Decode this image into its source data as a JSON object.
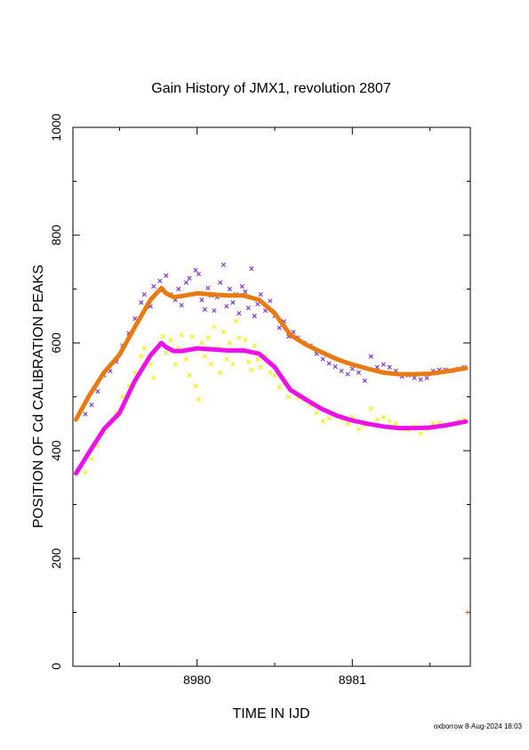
{
  "chart_data": {
    "type": "scatter",
    "title": "Gain History of JMX1, revolution 2807",
    "xlabel": "TIME IN IJD",
    "ylabel": "POSITION OF Cd CALIBRATION PEAKS",
    "xlim": [
      8979.2,
      8981.76
    ],
    "ylim": [
      0,
      1000
    ],
    "x_ticks": [
      8980,
      8981
    ],
    "x_tick_labels": [
      "8980",
      "8981"
    ],
    "y_ticks": [
      0,
      200,
      400,
      600,
      800,
      1000
    ],
    "y_tick_labels": [
      "0",
      "200",
      "400",
      "600",
      "800",
      "1000"
    ],
    "grid": false,
    "legend": "none",
    "series": [
      {
        "color": "#7b2fd6",
        "marker": "x",
        "points": [
          [
            8979.28,
            468
          ],
          [
            8979.32,
            485
          ],
          [
            8979.36,
            510
          ],
          [
            8979.4,
            540
          ],
          [
            8979.44,
            548
          ],
          [
            8979.48,
            565
          ],
          [
            8979.52,
            595
          ],
          [
            8979.56,
            618
          ],
          [
            8979.6,
            645
          ],
          [
            8979.64,
            675
          ],
          [
            8979.66,
            690
          ],
          [
            8979.7,
            668
          ],
          [
            8979.72,
            705
          ],
          [
            8979.76,
            715
          ],
          [
            8979.78,
            698
          ],
          [
            8979.8,
            725
          ],
          [
            8979.83,
            690
          ],
          [
            8979.86,
            680
          ],
          [
            8979.88,
            700
          ],
          [
            8979.9,
            670
          ],
          [
            8979.93,
            712
          ],
          [
            8979.95,
            720
          ],
          [
            8979.97,
            690
          ],
          [
            8979.99,
            735
          ],
          [
            8980.01,
            728
          ],
          [
            8980.03,
            680
          ],
          [
            8980.05,
            662
          ],
          [
            8980.07,
            702
          ],
          [
            8980.09,
            688
          ],
          [
            8980.11,
            660
          ],
          [
            8980.13,
            685
          ],
          [
            8980.15,
            712
          ],
          [
            8980.17,
            745
          ],
          [
            8980.19,
            668
          ],
          [
            8980.21,
            700
          ],
          [
            8980.23,
            675
          ],
          [
            8980.25,
            690
          ],
          [
            8980.27,
            655
          ],
          [
            8980.29,
            705
          ],
          [
            8980.31,
            695
          ],
          [
            8980.33,
            665
          ],
          [
            8980.35,
            738
          ],
          [
            8980.37,
            650
          ],
          [
            8980.39,
            672
          ],
          [
            8980.41,
            690
          ],
          [
            8980.44,
            660
          ],
          [
            8980.47,
            678
          ],
          [
            8980.5,
            650
          ],
          [
            8980.53,
            628
          ],
          [
            8980.56,
            640
          ],
          [
            8980.59,
            612
          ],
          [
            8980.62,
            620
          ],
          [
            8980.65,
            610
          ],
          [
            8980.69,
            600
          ],
          [
            8980.73,
            595
          ],
          [
            8980.77,
            580
          ],
          [
            8980.81,
            570
          ],
          [
            8980.85,
            562
          ],
          [
            8980.89,
            556
          ],
          [
            8980.93,
            548
          ],
          [
            8980.97,
            542
          ],
          [
            8981.0,
            552
          ],
          [
            8981.04,
            545
          ],
          [
            8981.08,
            530
          ],
          [
            8981.12,
            575
          ],
          [
            8981.16,
            555
          ],
          [
            8981.2,
            560
          ],
          [
            8981.24,
            555
          ],
          [
            8981.28,
            548
          ],
          [
            8981.32,
            538
          ],
          [
            8981.36,
            540
          ],
          [
            8981.4,
            535
          ],
          [
            8981.44,
            532
          ],
          [
            8981.48,
            535
          ],
          [
            8981.52,
            548
          ],
          [
            8981.56,
            550
          ],
          [
            8981.6,
            550
          ],
          [
            8981.64,
            548
          ],
          [
            8981.68,
            552
          ],
          [
            8981.72,
            555
          ]
        ]
      },
      {
        "color": "#f0f000",
        "marker": "x",
        "points": [
          [
            8979.28,
            360
          ],
          [
            8979.32,
            385
          ],
          [
            8979.36,
            410
          ],
          [
            8979.4,
            435
          ],
          [
            8979.44,
            448
          ],
          [
            8979.48,
            470
          ],
          [
            8979.52,
            500
          ],
          [
            8979.56,
            520
          ],
          [
            8979.6,
            545
          ],
          [
            8979.64,
            575
          ],
          [
            8979.66,
            590
          ],
          [
            8979.7,
            560
          ],
          [
            8979.72,
            535
          ],
          [
            8979.76,
            600
          ],
          [
            8979.78,
            612
          ],
          [
            8979.8,
            582
          ],
          [
            8979.83,
            605
          ],
          [
            8979.86,
            560
          ],
          [
            8979.88,
            590
          ],
          [
            8979.9,
            615
          ],
          [
            8979.93,
            570
          ],
          [
            8979.95,
            540
          ],
          [
            8979.97,
            612
          ],
          [
            8979.99,
            520
          ],
          [
            8980.01,
            495
          ],
          [
            8980.03,
            600
          ],
          [
            8980.05,
            575
          ],
          [
            8980.07,
            610
          ],
          [
            8980.09,
            560
          ],
          [
            8980.11,
            630
          ],
          [
            8980.13,
            590
          ],
          [
            8980.15,
            545
          ],
          [
            8980.17,
            620
          ],
          [
            8980.19,
            570
          ],
          [
            8980.21,
            600
          ],
          [
            8980.23,
            560
          ],
          [
            8980.25,
            640
          ],
          [
            8980.27,
            610
          ],
          [
            8980.29,
            585
          ],
          [
            8980.31,
            605
          ],
          [
            8980.33,
            565
          ],
          [
            8980.35,
            550
          ],
          [
            8980.37,
            595
          ],
          [
            8980.39,
            570
          ],
          [
            8980.41,
            555
          ],
          [
            8980.44,
            575
          ],
          [
            8980.47,
            545
          ],
          [
            8980.5,
            540
          ],
          [
            8980.53,
            518
          ],
          [
            8980.56,
            525
          ],
          [
            8980.59,
            500
          ],
          [
            8980.62,
            512
          ],
          [
            8980.65,
            498
          ],
          [
            8980.69,
            495
          ],
          [
            8980.73,
            485
          ],
          [
            8980.77,
            470
          ],
          [
            8980.81,
            455
          ],
          [
            8980.85,
            460
          ],
          [
            8980.89,
            468
          ],
          [
            8980.93,
            458
          ],
          [
            8980.97,
            450
          ],
          [
            8981.0,
            462
          ],
          [
            8981.04,
            440
          ],
          [
            8981.08,
            448
          ],
          [
            8981.12,
            478
          ],
          [
            8981.16,
            458
          ],
          [
            8981.2,
            462
          ],
          [
            8981.24,
            455
          ],
          [
            8981.28,
            450
          ],
          [
            8981.32,
            440
          ],
          [
            8981.36,
            438
          ],
          [
            8981.4,
            445
          ],
          [
            8981.44,
            432
          ],
          [
            8981.48,
            440
          ],
          [
            8981.52,
            450
          ],
          [
            8981.56,
            452
          ],
          [
            8981.6,
            448
          ],
          [
            8981.64,
            450
          ],
          [
            8981.68,
            455
          ],
          [
            8981.72,
            458
          ]
        ]
      },
      {
        "color": "#e87a10",
        "marker": "+",
        "points": [
          [
            8981.74,
            100
          ]
        ]
      }
    ],
    "curves": [
      {
        "color": "#e87a10",
        "x": [
          8979.22,
          8979.3,
          8979.4,
          8979.5,
          8979.6,
          8979.7,
          8979.77,
          8979.8,
          8979.85,
          8979.9,
          8980.0,
          8980.1,
          8980.2,
          8980.3,
          8980.4,
          8980.5,
          8980.6,
          8980.7,
          8980.8,
          8980.9,
          8981.0,
          8981.1,
          8981.2,
          8981.3,
          8981.4,
          8981.5,
          8981.6,
          8981.73
        ],
        "y": [
          458,
          500,
          545,
          578,
          630,
          680,
          702,
          692,
          685,
          687,
          692,
          690,
          688,
          688,
          680,
          655,
          615,
          597,
          583,
          570,
          560,
          552,
          545,
          542,
          542,
          543,
          547,
          553
        ]
      },
      {
        "color": "#ee10e8",
        "x": [
          8979.22,
          8979.3,
          8979.4,
          8979.5,
          8979.6,
          8979.7,
          8979.77,
          8979.8,
          8979.85,
          8979.9,
          8980.0,
          8980.1,
          8980.2,
          8980.3,
          8980.4,
          8980.5,
          8980.6,
          8980.7,
          8980.8,
          8980.9,
          8981.0,
          8981.1,
          8981.2,
          8981.3,
          8981.4,
          8981.5,
          8981.6,
          8981.73
        ],
        "y": [
          358,
          395,
          440,
          470,
          530,
          577,
          600,
          592,
          585,
          585,
          590,
          588,
          586,
          586,
          580,
          555,
          513,
          495,
          478,
          465,
          456,
          450,
          445,
          442,
          442,
          443,
          447,
          454
        ]
      }
    ],
    "footer_text": "oxborrow  8-Aug-2024 18:03"
  }
}
